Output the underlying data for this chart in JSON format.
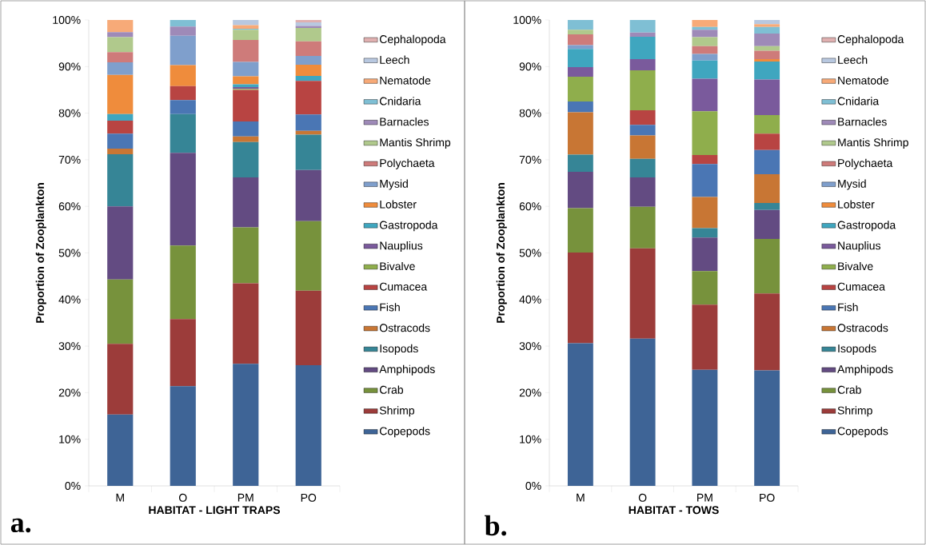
{
  "chart_data": [
    {
      "type": "bar",
      "stacked": true,
      "xlabel": "HABITAT - LIGHT TRAPS",
      "ylabel": "Proportion of Zooplankton",
      "categories": [
        "M",
        "O",
        "PM",
        "PO"
      ],
      "ylim": [
        0,
        100
      ],
      "yticks": [
        {
          "value": 0,
          "label": "0%"
        },
        {
          "value": 10,
          "label": "10%"
        },
        {
          "value": 20,
          "label": "20%"
        },
        {
          "value": 30,
          "label": "30%"
        },
        {
          "value": 40,
          "label": "40%"
        },
        {
          "value": 50,
          "label": "50%"
        },
        {
          "value": 60,
          "label": "60%"
        },
        {
          "value": 70,
          "label": "70%"
        },
        {
          "value": 80,
          "label": "80%"
        },
        {
          "value": 90,
          "label": "90%"
        },
        {
          "value": 100,
          "label": "100%"
        }
      ],
      "legend": "right",
      "annotations": [
        "a."
      ],
      "series": [
        {
          "name": "Copepods",
          "color": "#3e6496",
          "values": [
            15.3,
            21.4,
            26.2,
            25.9
          ]
        },
        {
          "name": "Shrimp",
          "color": "#9c3c3a",
          "values": [
            15.2,
            14.4,
            17.3,
            16.0
          ]
        },
        {
          "name": "Crab",
          "color": "#77923c",
          "values": [
            13.8,
            15.8,
            12.0,
            14.9
          ]
        },
        {
          "name": "Amphipods",
          "color": "#634b82",
          "values": [
            15.7,
            19.9,
            10.7,
            11.0
          ]
        },
        {
          "name": "Isopods",
          "color": "#368596",
          "values": [
            11.2,
            8.3,
            7.6,
            7.6
          ]
        },
        {
          "name": "Ostracods",
          "color": "#c87634",
          "values": [
            1.2,
            0,
            1.2,
            0.8
          ]
        },
        {
          "name": "Fish",
          "color": "#4a76b4",
          "values": [
            3.2,
            3.0,
            3.2,
            3.5
          ]
        },
        {
          "name": "Cumacea",
          "color": "#b84442",
          "values": [
            2.8,
            3.0,
            6.8,
            7.2
          ]
        },
        {
          "name": "Bivalve",
          "color": "#8fae4c",
          "values": [
            0,
            0,
            0.2,
            0
          ]
        },
        {
          "name": "Nauplius",
          "color": "#7a5a9c",
          "values": [
            0,
            0,
            0.4,
            0
          ]
        },
        {
          "name": "Gastropoda",
          "color": "#3fa6bf",
          "values": [
            1.4,
            0,
            0.6,
            1.1
          ]
        },
        {
          "name": "Lobster",
          "color": "#ef8c3c",
          "values": [
            8.4,
            4.5,
            1.7,
            2.4
          ]
        },
        {
          "name": "Mysid",
          "color": "#7f9fcc",
          "values": [
            2.7,
            6.3,
            3.1,
            1.9
          ]
        },
        {
          "name": "Polychaeta",
          "color": "#ce7b7a",
          "values": [
            2.2,
            0,
            4.7,
            3.1
          ]
        },
        {
          "name": "Mantis Shrimp",
          "color": "#b0c98c",
          "values": [
            3.2,
            0,
            2.2,
            2.9
          ]
        },
        {
          "name": "Barnacles",
          "color": "#9e8ab8",
          "values": [
            1.1,
            2.0,
            0,
            0.4
          ]
        },
        {
          "name": "Cnidaria",
          "color": "#7fbfd4",
          "values": [
            0,
            1.4,
            0.2,
            0
          ]
        },
        {
          "name": "Nematode",
          "color": "#f7aa78",
          "values": [
            2.6,
            0,
            0.8,
            0
          ]
        },
        {
          "name": "Leech",
          "color": "#b8c8e0",
          "values": [
            0,
            0,
            1.1,
            0.8
          ]
        },
        {
          "name": "Cephalopoda",
          "color": "#e0b0b0",
          "values": [
            0,
            0,
            0,
            0.5
          ]
        }
      ]
    },
    {
      "type": "bar",
      "stacked": true,
      "xlabel": "HABITAT - TOWS",
      "ylabel": "Proportion of Zooplankton",
      "categories": [
        "M",
        "O",
        "PM",
        "PO"
      ],
      "ylim": [
        0,
        100
      ],
      "yticks": [
        {
          "value": 0,
          "label": "0%"
        },
        {
          "value": 10,
          "label": "10%"
        },
        {
          "value": 20,
          "label": "20%"
        },
        {
          "value": 30,
          "label": "30%"
        },
        {
          "value": 40,
          "label": "40%"
        },
        {
          "value": 50,
          "label": "50%"
        },
        {
          "value": 60,
          "label": "60%"
        },
        {
          "value": 70,
          "label": "70%"
        },
        {
          "value": 80,
          "label": "80%"
        },
        {
          "value": 90,
          "label": "90%"
        },
        {
          "value": 100,
          "label": "100%"
        }
      ],
      "legend": "right",
      "annotations": [
        "b."
      ],
      "series": [
        {
          "name": "Copepods",
          "color": "#3e6496",
          "values": [
            30.6,
            31.6,
            24.9,
            24.8
          ]
        },
        {
          "name": "Shrimp",
          "color": "#9c3c3a",
          "values": [
            19.5,
            19.4,
            14.0,
            16.5
          ]
        },
        {
          "name": "Crab",
          "color": "#77923c",
          "values": [
            9.5,
            8.9,
            7.2,
            11.7
          ]
        },
        {
          "name": "Amphipods",
          "color": "#634b82",
          "values": [
            7.8,
            6.3,
            7.2,
            6.2
          ]
        },
        {
          "name": "Isopods",
          "color": "#368596",
          "values": [
            3.7,
            4.0,
            2.0,
            1.5
          ]
        },
        {
          "name": "Ostracods",
          "color": "#c87634",
          "values": [
            9.1,
            5.0,
            6.7,
            6.2
          ]
        },
        {
          "name": "Fish",
          "color": "#4a76b4",
          "values": [
            2.3,
            2.3,
            7.1,
            5.2
          ]
        },
        {
          "name": "Cumacea",
          "color": "#b84442",
          "values": [
            0,
            3.1,
            1.9,
            3.5
          ]
        },
        {
          "name": "Bivalve",
          "color": "#8fae4c",
          "values": [
            5.3,
            8.6,
            9.4,
            4.0
          ]
        },
        {
          "name": "Nauplius",
          "color": "#7a5a9c",
          "values": [
            2.1,
            2.4,
            7.0,
            7.6
          ]
        },
        {
          "name": "Gastropoda",
          "color": "#3fa6bf",
          "values": [
            3.9,
            4.8,
            3.9,
            3.9
          ]
        },
        {
          "name": "Lobster",
          "color": "#ef8c3c",
          "values": [
            0,
            0,
            0,
            0.5
          ]
        },
        {
          "name": "Mysid",
          "color": "#7f9fcc",
          "values": [
            0.8,
            0,
            1.4,
            0
          ]
        },
        {
          "name": "Polychaeta",
          "color": "#ce7b7a",
          "values": [
            2.3,
            0,
            1.7,
            1.8
          ]
        },
        {
          "name": "Mantis Shrimp",
          "color": "#b0c98c",
          "values": [
            1.0,
            0,
            1.9,
            1.0
          ]
        },
        {
          "name": "Barnacles",
          "color": "#9e8ab8",
          "values": [
            0,
            0.9,
            1.6,
            2.7
          ]
        },
        {
          "name": "Cnidaria",
          "color": "#7fbfd4",
          "values": [
            2.1,
            2.7,
            0.6,
            1.4
          ]
        },
        {
          "name": "Nematode",
          "color": "#f7aa78",
          "values": [
            0,
            0,
            1.5,
            0.6
          ]
        },
        {
          "name": "Leech",
          "color": "#b8c8e0",
          "values": [
            0,
            0,
            0,
            0.9
          ]
        },
        {
          "name": "Cephalopoda",
          "color": "#e0b0b0",
          "values": [
            0,
            0,
            0,
            0
          ]
        }
      ]
    }
  ]
}
